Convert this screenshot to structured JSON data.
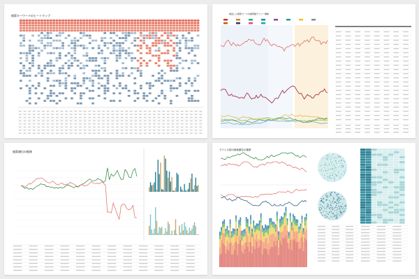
{
  "panels": [
    {
      "title": "検索キーワードのヒートマップ"
    },
    {
      "title": "検出した検索ワードの検索数デイリー推移"
    },
    {
      "title": "検索順位の推移"
    },
    {
      "title": "デバイス別の検索順位の推移"
    }
  ],
  "colors": {
    "background": "#ececec",
    "heat_red": "#e8836f",
    "heat_blue": "#a8bdd0",
    "line_red": "#e07b73",
    "line_maroon": "#a4344b",
    "line_green": "#3f8e4a",
    "line_blue": "#3b5e88",
    "bar_teal": "#2a7f93",
    "teal_light": "#7fc7c9"
  }
}
